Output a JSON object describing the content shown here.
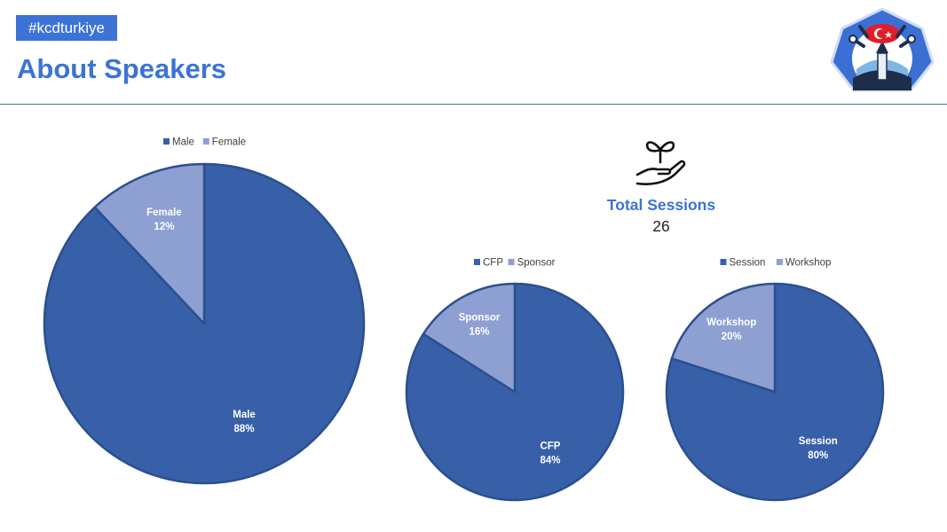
{
  "header": {
    "hashtag": "#kcdturkiye",
    "title": "About Speakers"
  },
  "stat": {
    "label": "Total Sessions",
    "value": "26",
    "icon": "plant-hand-icon"
  },
  "logo": {
    "icon": "kcd-turkiye-logo-icon"
  },
  "colors": {
    "accent": "#3b73d6",
    "primary_slice": "#3860a8",
    "secondary_slice": "#8e9fd2"
  },
  "chart_data": [
    {
      "type": "pie",
      "categories": [
        "Male",
        "Female"
      ],
      "values": [
        88,
        12
      ],
      "labels": [
        "88%",
        "12%"
      ],
      "legend": "top"
    },
    {
      "type": "pie",
      "categories": [
        "CFP",
        "Sponsor"
      ],
      "values": [
        84,
        16
      ],
      "labels": [
        "84%",
        "16%"
      ],
      "legend": "top"
    },
    {
      "type": "pie",
      "categories": [
        "Session",
        "Workshop"
      ],
      "values": [
        80,
        20
      ],
      "labels": [
        "80%",
        "20%"
      ],
      "legend": "top"
    }
  ]
}
